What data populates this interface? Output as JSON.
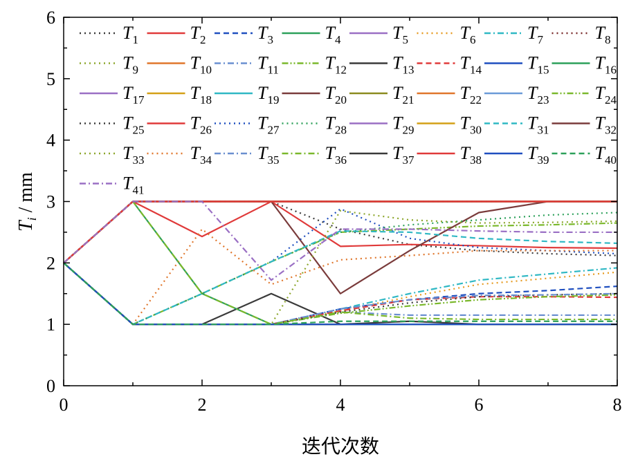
{
  "chart_data": {
    "type": "line",
    "title": "",
    "xlabel": "迭代次数",
    "ylabel": {
      "base": "T",
      "sub": "i",
      "unit": " / mm"
    },
    "xlim": [
      0,
      8
    ],
    "ylim": [
      0,
      6
    ],
    "x_ticks": [
      "0",
      "2",
      "4",
      "6",
      "8"
    ],
    "y_ticks": [
      "0",
      "1",
      "2",
      "3",
      "4",
      "5",
      "6"
    ],
    "grid": false,
    "legend_position": "top",
    "x": [
      0,
      1,
      2,
      3,
      4,
      5,
      6,
      7,
      8
    ],
    "series": [
      {
        "base": "T",
        "sub": "1",
        "color": "#3a3a3a",
        "dash": "dot",
        "values": [
          2,
          3,
          3,
          3,
          2.55,
          2.3,
          2.2,
          2.15,
          2.12
        ]
      },
      {
        "base": "T",
        "sub": "2",
        "color": "#e03a3a",
        "dash": "solid",
        "values": [
          2,
          3,
          2.43,
          3,
          2.27,
          2.3,
          2.28,
          2.25,
          2.24
        ]
      },
      {
        "base": "T",
        "sub": "3",
        "color": "#1f4fbf",
        "dash": "dash",
        "values": [
          2,
          1,
          1,
          1,
          1.25,
          1.4,
          1.5,
          1.55,
          1.62
        ]
      },
      {
        "base": "T",
        "sub": "4",
        "color": "#2ca05a",
        "dash": "solid",
        "values": [
          2,
          1,
          1,
          1,
          1,
          1,
          1,
          1,
          1
        ]
      },
      {
        "base": "T",
        "sub": "5",
        "color": "#9a6fc4",
        "dash": "solid",
        "values": [
          2,
          1,
          1,
          1,
          1,
          1,
          1,
          1,
          1
        ]
      },
      {
        "base": "T",
        "sub": "6",
        "color": "#e69a1f",
        "dash": "dot",
        "values": [
          2,
          1,
          1,
          1,
          1.22,
          1.45,
          1.65,
          1.75,
          1.85
        ]
      },
      {
        "base": "T",
        "sub": "7",
        "color": "#2fb8c4",
        "dash": "dashdot",
        "values": [
          2,
          1,
          1,
          1,
          1.25,
          1.5,
          1.72,
          1.82,
          1.92
        ]
      },
      {
        "base": "T",
        "sub": "8",
        "color": "#7a2b2b",
        "dash": "dot",
        "values": [
          2,
          3,
          3,
          3,
          3,
          3,
          3,
          3,
          3
        ]
      },
      {
        "base": "T",
        "sub": "9",
        "color": "#8ca62b",
        "dash": "dot",
        "values": [
          2,
          3,
          3,
          3,
          3,
          3,
          3,
          3,
          3
        ]
      },
      {
        "base": "T",
        "sub": "10",
        "color": "#e0762b",
        "dash": "solid",
        "values": [
          2,
          3,
          3,
          3,
          3,
          3,
          3,
          3,
          3
        ]
      },
      {
        "base": "T",
        "sub": "11",
        "color": "#6a8fd0",
        "dash": "dashdot",
        "values": [
          2,
          1,
          1,
          1,
          1.2,
          1.15,
          1.15,
          1.15,
          1.15
        ]
      },
      {
        "base": "T",
        "sub": "12",
        "color": "#7ab82b",
        "dash": "dashdotdot",
        "values": [
          2,
          1,
          1.5,
          2.02,
          2.5,
          2.55,
          2.6,
          2.62,
          2.65
        ]
      },
      {
        "base": "T",
        "sub": "13",
        "color": "#3a3a3a",
        "dash": "solid",
        "values": [
          2,
          1,
          1,
          1.5,
          1,
          1,
          1,
          1,
          1
        ]
      },
      {
        "base": "T",
        "sub": "14",
        "color": "#e03a3a",
        "dash": "dash",
        "values": [
          2,
          1,
          1,
          1,
          1.22,
          1.4,
          1.45,
          1.45,
          1.44
        ]
      },
      {
        "base": "T",
        "sub": "15",
        "color": "#1f4fbf",
        "dash": "solid",
        "values": [
          2,
          1,
          1,
          1,
          1,
          1,
          1,
          1,
          1
        ]
      },
      {
        "base": "T",
        "sub": "16",
        "color": "#2ca05a",
        "dash": "solid",
        "values": [
          2,
          3,
          1.5,
          1,
          1,
          1,
          1,
          1,
          1
        ]
      },
      {
        "base": "T",
        "sub": "17",
        "color": "#9a6fc4",
        "dash": "solid",
        "values": [
          2,
          3,
          3,
          3,
          3,
          3,
          3,
          3,
          3
        ]
      },
      {
        "base": "T",
        "sub": "18",
        "color": "#d4a017",
        "dash": "solid",
        "values": [
          2,
          3,
          3,
          3,
          3,
          3,
          3,
          3,
          3
        ]
      },
      {
        "base": "T",
        "sub": "19",
        "color": "#2fb8c4",
        "dash": "solid",
        "values": [
          2,
          1,
          1,
          1,
          1,
          1,
          1,
          1,
          1
        ]
      },
      {
        "base": "T",
        "sub": "20",
        "color": "#7a3b3b",
        "dash": "solid",
        "values": [
          2,
          3,
          3,
          3,
          1.5,
          2.2,
          2.82,
          3,
          3
        ]
      },
      {
        "base": "T",
        "sub": "21",
        "color": "#8a8a1f",
        "dash": "solid",
        "values": [
          2,
          3,
          3,
          3,
          3,
          3,
          3,
          3,
          3
        ]
      },
      {
        "base": "T",
        "sub": "22",
        "color": "#e0762b",
        "dash": "solid",
        "values": [
          2,
          3,
          3,
          3,
          3,
          3,
          3,
          3,
          3
        ]
      },
      {
        "base": "T",
        "sub": "23",
        "color": "#6a9ad8",
        "dash": "solid",
        "values": [
          2,
          1,
          1,
          1,
          1,
          1,
          1,
          1,
          1
        ]
      },
      {
        "base": "T",
        "sub": "24",
        "color": "#7ab82b",
        "dash": "dashdotdot",
        "values": [
          2,
          1,
          1,
          1,
          1.18,
          1.3,
          1.4,
          1.45,
          1.48
        ]
      },
      {
        "base": "T",
        "sub": "25",
        "color": "#3a3a3a",
        "dash": "dot",
        "values": [
          2,
          1,
          1,
          1,
          1.2,
          1.35,
          1.45,
          1.48,
          1.5
        ]
      },
      {
        "base": "T",
        "sub": "26",
        "color": "#e03a3a",
        "dash": "solid",
        "values": [
          2,
          3,
          3,
          3,
          3,
          3,
          3,
          3,
          3
        ]
      },
      {
        "base": "T",
        "sub": "27",
        "color": "#1f4fbf",
        "dash": "dot",
        "values": [
          2,
          1,
          1.5,
          2.02,
          2.88,
          2.4,
          2.25,
          2.2,
          2.15
        ]
      },
      {
        "base": "T",
        "sub": "28",
        "color": "#2ca05a",
        "dash": "dot",
        "values": [
          2,
          1,
          1.5,
          2.02,
          2.5,
          2.62,
          2.7,
          2.78,
          2.82
        ]
      },
      {
        "base": "T",
        "sub": "29",
        "color": "#9a6fc4",
        "dash": "solid",
        "values": [
          2,
          3,
          3,
          3,
          3,
          3,
          3,
          3,
          3
        ]
      },
      {
        "base": "T",
        "sub": "30",
        "color": "#d4a017",
        "dash": "solid",
        "values": [
          2,
          3,
          3,
          3,
          3,
          3,
          3,
          3,
          3
        ]
      },
      {
        "base": "T",
        "sub": "31",
        "color": "#2fb8c4",
        "dash": "dash",
        "values": [
          2,
          1,
          1.5,
          2.02,
          2.52,
          2.5,
          2.4,
          2.35,
          2.32
        ]
      },
      {
        "base": "T",
        "sub": "32",
        "color": "#7a3b3b",
        "dash": "solid",
        "values": [
          2,
          3,
          3,
          3,
          3,
          3,
          3,
          3,
          3
        ]
      },
      {
        "base": "T",
        "sub": "33",
        "color": "#8ca62b",
        "dash": "dot",
        "values": [
          2,
          1,
          1,
          1,
          2.85,
          2.7,
          2.65,
          2.66,
          2.68
        ]
      },
      {
        "base": "T",
        "sub": "34",
        "color": "#e0762b",
        "dash": "dot",
        "values": [
          2,
          1,
          2.55,
          1.65,
          2.05,
          2.12,
          2.2,
          2.2,
          2.2
        ]
      },
      {
        "base": "T",
        "sub": "35",
        "color": "#6a8fd0",
        "dash": "dashdot",
        "values": [
          2,
          1,
          1,
          1,
          1.25,
          1.4,
          1.47,
          1.48,
          1.5
        ]
      },
      {
        "base": "T",
        "sub": "36",
        "color": "#7ab82b",
        "dash": "dashdot",
        "values": [
          2,
          3,
          1.5,
          1,
          1.2,
          1.1,
          1.08,
          1.08,
          1.08
        ]
      },
      {
        "base": "T",
        "sub": "37",
        "color": "#3a3a3a",
        "dash": "solid",
        "values": [
          2,
          1,
          1,
          1,
          1,
          1.05,
          1,
          1,
          1
        ]
      },
      {
        "base": "T",
        "sub": "38",
        "color": "#e03a3a",
        "dash": "solid",
        "values": [
          2,
          3,
          3,
          3,
          3,
          3,
          3,
          3,
          3
        ]
      },
      {
        "base": "T",
        "sub": "39",
        "color": "#1f4fbf",
        "dash": "solid",
        "values": [
          2,
          1,
          1,
          1,
          1,
          1,
          1,
          1,
          1
        ]
      },
      {
        "base": "T",
        "sub": "40",
        "color": "#2ca05a",
        "dash": "dash",
        "values": [
          2,
          1,
          1,
          1,
          1.05,
          1.05,
          1.05,
          1.05,
          1.05
        ]
      },
      {
        "base": "T",
        "sub": "41",
        "color": "#9a6fc4",
        "dash": "dashdot",
        "values": [
          2,
          3,
          3,
          1.72,
          2.55,
          2.55,
          2.52,
          2.5,
          2.5
        ]
      }
    ]
  }
}
